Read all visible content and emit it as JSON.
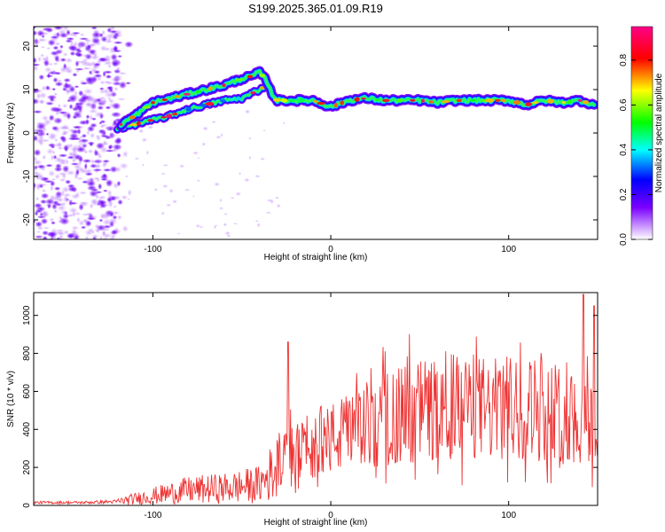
{
  "title": "S199.2025.365.01.09.R19",
  "chart_data": [
    {
      "type": "heatmap",
      "xlabel": "Height of straight line (km)",
      "ylabel": "Frequency (Hz)",
      "xlim": [
        -167,
        150
      ],
      "ylim": [
        -24.5,
        24.5
      ],
      "xticks": [
        -100,
        0,
        100
      ],
      "yticks": [
        -20,
        -10,
        0,
        10,
        20
      ],
      "grid": false,
      "ridge": {
        "x": [
          -118,
          -110,
          -100,
          -90,
          -80,
          -70,
          -60,
          -50,
          -45,
          -40,
          -36,
          -33,
          -30,
          -25,
          -20,
          -10,
          0,
          10,
          20,
          30,
          40,
          50,
          60,
          70,
          80,
          90,
          100,
          110,
          120,
          130,
          140,
          148
        ],
        "y": [
          2,
          4,
          7,
          8,
          9,
          10,
          11,
          12.5,
          13,
          14,
          12,
          9,
          7.5,
          7.5,
          7.5,
          7.5,
          6,
          7.5,
          8,
          7.5,
          7.5,
          7.5,
          7,
          7.5,
          7.5,
          7.5,
          7.5,
          6.5,
          7.5,
          7,
          7.5,
          6.5
        ]
      },
      "ridge2": {
        "x": [
          -120,
          -110,
          -100,
          -90,
          -80,
          -70,
          -60,
          -50,
          -45,
          -40,
          -36
        ],
        "y": [
          1,
          2,
          3,
          4,
          5.5,
          6.5,
          7.5,
          8,
          9,
          10,
          11
        ]
      },
      "colorbar": {
        "label": "Normalized spectral amplitude",
        "range": [
          0,
          0.95
        ],
        "ticks": [
          "0.0",
          "0.2",
          "0.4",
          "0.6",
          "0.8"
        ]
      }
    },
    {
      "type": "line",
      "xlabel": "Height of straight line (km)",
      "ylabel": "SNR (10 * v/v)",
      "xlim": [
        -167,
        150
      ],
      "ylim": [
        0,
        1120
      ],
      "xticks": [
        -100,
        0,
        100
      ],
      "yticks": [
        0,
        200,
        400,
        600,
        800,
        1000
      ],
      "color": "#ee3333",
      "envelope": {
        "x": [
          -167,
          -140,
          -120,
          -100,
          -80,
          -60,
          -40,
          -30,
          -25,
          -20,
          -10,
          0,
          10,
          20,
          30,
          40,
          50,
          60,
          70,
          80,
          90,
          100,
          110,
          120,
          130,
          140,
          150
        ],
        "y": [
          15,
          15,
          20,
          50,
          80,
          90,
          110,
          200,
          260,
          280,
          320,
          350,
          380,
          420,
          450,
          480,
          500,
          510,
          520,
          520,
          500,
          510,
          520,
          500,
          480,
          450,
          430
        ]
      },
      "spikes": [
        {
          "x": -24,
          "y": 860
        },
        {
          "x": 142,
          "y": 1110
        },
        {
          "x": 148,
          "y": 1050
        }
      ]
    }
  ]
}
